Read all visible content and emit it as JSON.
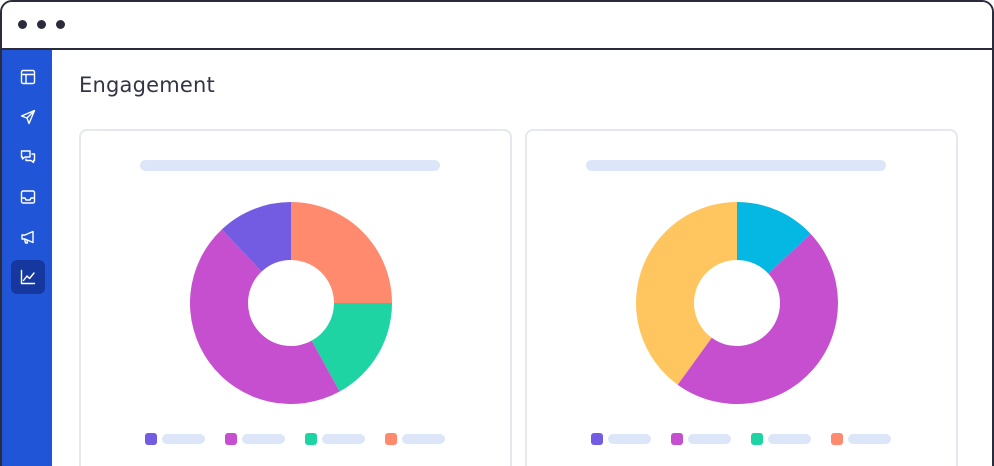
{
  "page": {
    "title": "Engagement"
  },
  "sidebar": {
    "items": [
      {
        "icon": "layout-icon",
        "active": false
      },
      {
        "icon": "send-icon",
        "active": false
      },
      {
        "icon": "chat-icon",
        "active": false
      },
      {
        "icon": "inbox-icon",
        "active": false
      },
      {
        "icon": "megaphone-icon",
        "active": false
      },
      {
        "icon": "analytics-icon",
        "active": true
      }
    ]
  },
  "colors": {
    "purple": "#735ce2",
    "magenta": "#c64fcf",
    "teal": "#1ed4a3",
    "coral": "#ff8a6e",
    "yellow": "#ffc55e",
    "sky": "#04b8e3",
    "sidebar": "#1f55d6"
  },
  "chart_data": [
    {
      "type": "pie",
      "donut": true,
      "title": "",
      "series": [
        {
          "color": "#ff8a6e",
          "value": 25
        },
        {
          "color": "#1ed4a3",
          "value": 17
        },
        {
          "color": "#c64fcf",
          "value": 46
        },
        {
          "color": "#735ce2",
          "value": 12
        }
      ],
      "legend": [
        "#735ce2",
        "#c64fcf",
        "#1ed4a3",
        "#ff8a6e"
      ]
    },
    {
      "type": "pie",
      "donut": true,
      "title": "",
      "series": [
        {
          "color": "#04b8e3",
          "value": 13
        },
        {
          "color": "#c64fcf",
          "value": 47
        },
        {
          "color": "#ffc55e",
          "value": 40
        }
      ],
      "legend": [
        "#735ce2",
        "#c64fcf",
        "#1ed4a3",
        "#ff8a6e"
      ]
    }
  ]
}
